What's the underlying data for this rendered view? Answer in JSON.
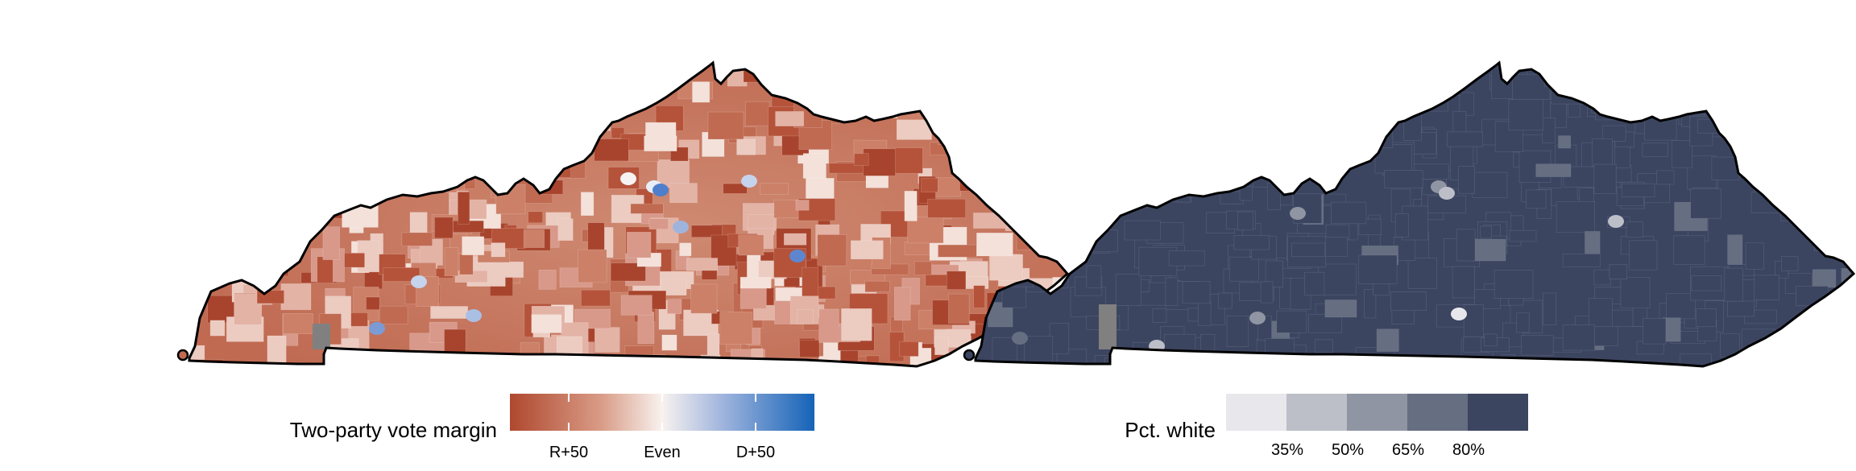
{
  "left_map": {
    "legend_title": "Two-party vote margin",
    "ticks": [
      "R+50",
      "Even",
      "D+50"
    ],
    "colors": {
      "deep_red": "#b0482f",
      "mid_red": "#d99c87",
      "light": "#f8f2ef",
      "mid_blue": "#9fb4dd",
      "deep_blue": "#1563b8",
      "missing": "#808080"
    }
  },
  "right_map": {
    "legend_title": "Pct. white",
    "ticks": [
      "35%",
      "50%",
      "65%",
      "80%"
    ],
    "bins": [
      "#e8e8ec",
      "#bcbfc8",
      "#9095a3",
      "#666e81",
      "#3c4560"
    ],
    "fill": "#3c4560",
    "missing": "#808080"
  }
}
